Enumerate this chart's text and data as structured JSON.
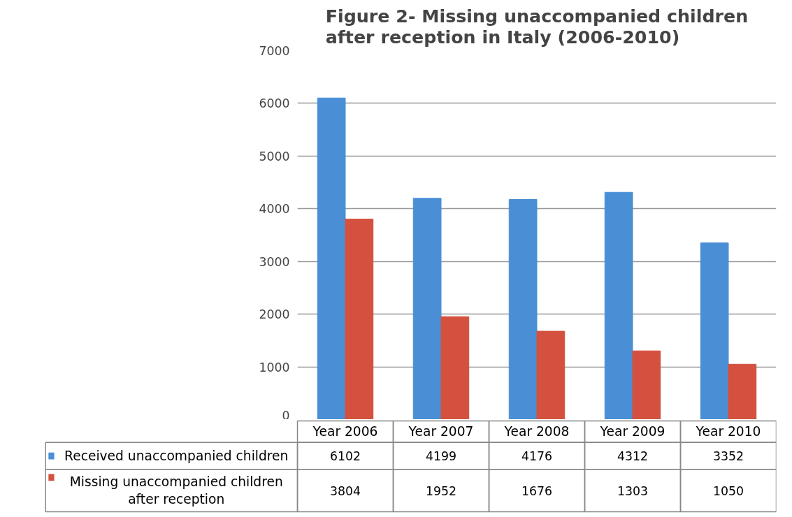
{
  "chart_data": {
    "type": "bar",
    "title": "Figure 2- Missing unaccompanied children after reception in Italy (2006-2010)",
    "categories": [
      "Year 2006",
      "Year 2007",
      "Year 2008",
      "Year 2009",
      "Year 2010"
    ],
    "series": [
      {
        "name": "Received unaccompanied children",
        "color": "#4a8fd6",
        "values": [
          6102,
          4199,
          4176,
          4312,
          3352
        ]
      },
      {
        "name": "Missing unaccompanied children after reception",
        "color": "#d4503f",
        "values": [
          3804,
          1952,
          1676,
          1303,
          1050
        ]
      }
    ],
    "ylim": [
      0,
      7000
    ],
    "yticks": [
      0,
      1000,
      2000,
      3000,
      4000,
      5000,
      6000,
      7000
    ],
    "grid": "y",
    "legend": "bottom",
    "data_labels": true
  }
}
